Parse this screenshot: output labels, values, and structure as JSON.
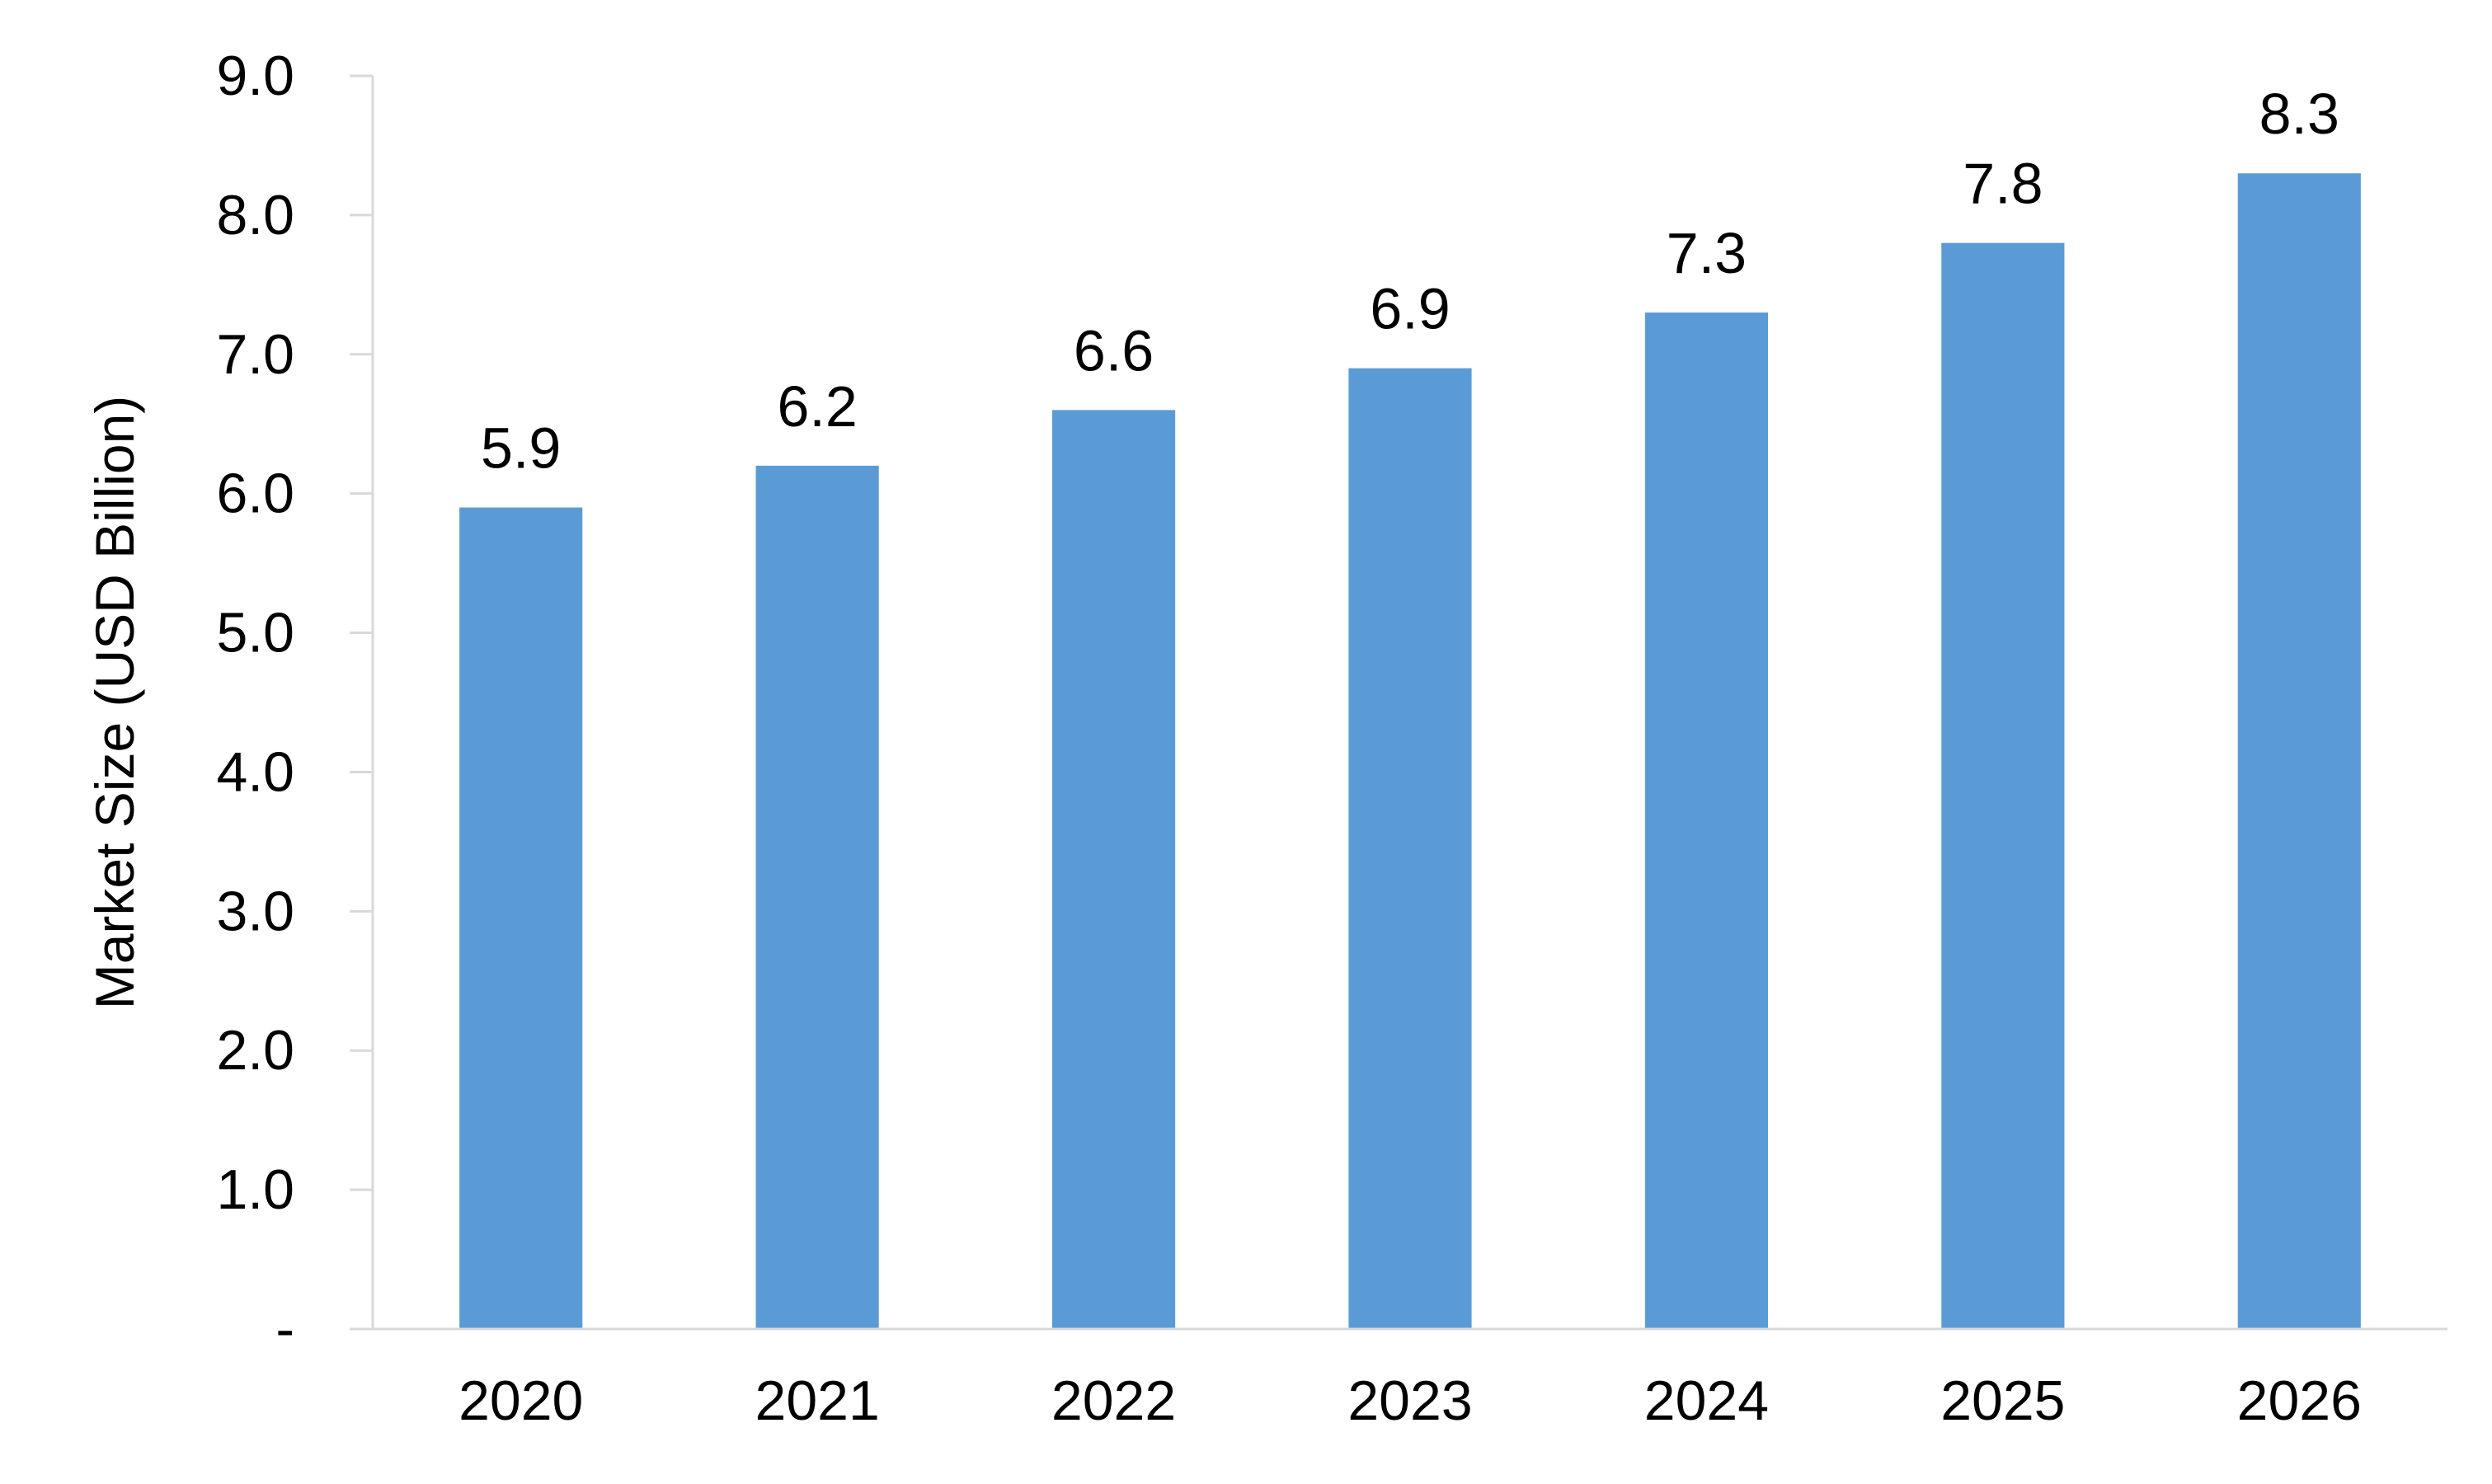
{
  "chart_data": {
    "type": "bar",
    "title": "",
    "xlabel": "",
    "ylabel": "Market Size (USD Billion)",
    "categories": [
      "2020",
      "2021",
      "2022",
      "2023",
      "2024",
      "2025",
      "2026"
    ],
    "values": [
      5.9,
      6.2,
      6.6,
      6.9,
      7.3,
      7.8,
      8.3
    ],
    "data_labels": [
      "5.9",
      "6.2",
      "6.6",
      "6.9",
      "7.3",
      "7.8",
      "8.3"
    ],
    "ylim": [
      0,
      9
    ],
    "yticks": [
      0,
      1,
      2,
      3,
      4,
      5,
      6,
      7,
      8,
      9
    ],
    "ytick_labels": [
      "-",
      "1.0",
      "2.0",
      "3.0",
      "4.0",
      "5.0",
      "6.0",
      "7.0",
      "8.0",
      "9.0"
    ],
    "grid": false,
    "legend": "none",
    "colors": {
      "bar": "#5B9BD5",
      "axis": "#D9D9D9",
      "text": "#000000"
    }
  }
}
